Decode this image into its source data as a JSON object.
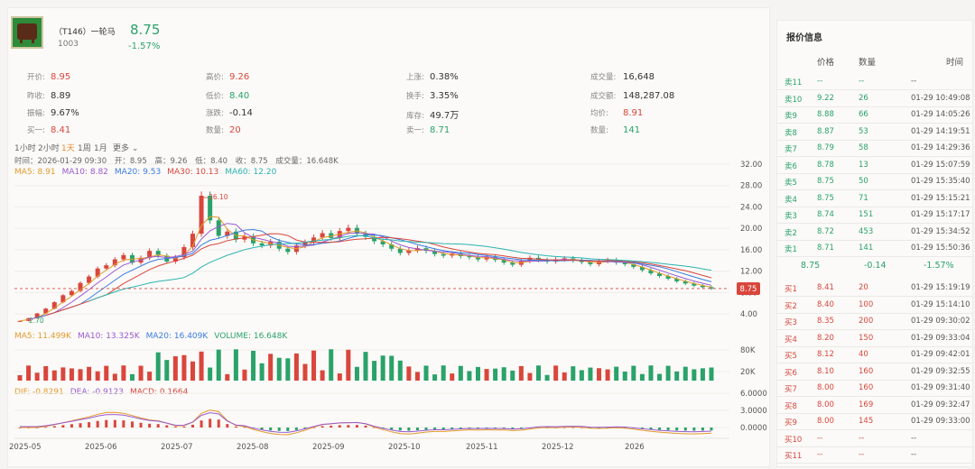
{
  "stock": {
    "name": "（T146）一轮马",
    "code": "1003",
    "price": "8.75",
    "change_pct": "-1.57%"
  },
  "stats": [
    {
      "label": "开价:",
      "value": "8.95",
      "color": "red"
    },
    {
      "label": "高价:",
      "value": "9.26",
      "color": "red"
    },
    {
      "label": "上涨:",
      "value": "0.38%",
      "color": ""
    },
    {
      "label": "成交量:",
      "value": "16,648",
      "color": ""
    },
    {
      "label": "昨收:",
      "value": "8.89",
      "color": ""
    },
    {
      "label": "低价:",
      "value": "8.40",
      "color": "green"
    },
    {
      "label": "换手:",
      "value": "3.35%",
      "color": ""
    },
    {
      "label": "成交额:",
      "value": "148,287.08",
      "color": ""
    },
    {
      "label": "振幅:",
      "value": "9.67%",
      "color": ""
    },
    {
      "label": "涨跌:",
      "value": "-0.14",
      "color": ""
    },
    {
      "label": "库存:",
      "value": "49.7万",
      "color": ""
    },
    {
      "label": "均价:",
      "value": "8.91",
      "color": "red"
    },
    {
      "label": "买一:",
      "value": "8.41",
      "color": "red"
    },
    {
      "label": "数量:",
      "value": "20",
      "color": "red"
    },
    {
      "label": "卖一:",
      "value": "8.71",
      "color": "green"
    },
    {
      "label": "数量:",
      "value": "141",
      "color": "green"
    }
  ],
  "timeframes": [
    "1小时",
    "2小时",
    "1天",
    "1周",
    "1月"
  ],
  "timeframe_active": "1天",
  "timeframe_more": "更多 ⌄",
  "kline_info": {
    "time": "时间：2026-01-29 09:30",
    "open": "开：8.95",
    "high": "高：9.26",
    "low": "低：8.40",
    "close": "收：8.75",
    "volume": "成交量：16.648K"
  },
  "ma_legend": [
    {
      "text": "MA5: 8.91",
      "color": "#e59a2c"
    },
    {
      "text": "MA10: 8.82",
      "color": "#9b59d0"
    },
    {
      "text": "MA20: 9.53",
      "color": "#3b7be0"
    },
    {
      "text": "MA30: 10.13",
      "color": "#d9463c"
    },
    {
      "text": "MA60: 12.20",
      "color": "#2bb3b0"
    }
  ],
  "vol_legend": [
    {
      "text": "MA5: 11.499K",
      "color": "#e59a2c"
    },
    {
      "text": "MA10: 13.325K",
      "color": "#9b59d0"
    },
    {
      "text": "MA20: 16.409K",
      "color": "#3b7be0"
    },
    {
      "text": "VOLUME: 16.648K",
      "color": "#2aa26a"
    }
  ],
  "macd_legend": [
    {
      "text": "DIF: -0.8291",
      "color": "#e59a2c"
    },
    {
      "text": "DEA: -0.9123",
      "color": "#9b59d0"
    },
    {
      "text": "MACD: 0.1664",
      "color": "#d9463c"
    }
  ],
  "price_axis": [
    "32.00",
    "28.00",
    "24.00",
    "20.00",
    "16.00",
    "12.00",
    "8.00",
    "4.00"
  ],
  "vol_axis": [
    "80K",
    "20K"
  ],
  "macd_axis": [
    "6.0000",
    "3.0000",
    "0.0000"
  ],
  "x_axis": [
    "2025-05",
    "2025-06",
    "2025-07",
    "2025-08",
    "2025-09",
    "2025-10",
    "2025-11",
    "2025-12",
    "2026"
  ],
  "annotations": {
    "high": "26.10",
    "low": "2.70",
    "current": "8.75"
  },
  "chart_data": {
    "type": "candlestick",
    "price_series": [
      2.7,
      3.2,
      4.1,
      5.0,
      6.2,
      7.5,
      8.3,
      9.8,
      11.0,
      12.5,
      13.1,
      14.2,
      15.0,
      13.6,
      14.5,
      15.8,
      14.9,
      13.8,
      14.6,
      16.5,
      19.0,
      26.1,
      21.5,
      18.6,
      19.4,
      17.9,
      18.5,
      17.2,
      16.8,
      17.5,
      16.2,
      15.6,
      16.8,
      17.4,
      18.3,
      19.1,
      18.2,
      19.5,
      20.1,
      19.0,
      18.4,
      17.6,
      17.0,
      16.2,
      15.4,
      15.9,
      16.3,
      15.8,
      15.2,
      14.9,
      15.3,
      14.8,
      14.6,
      14.2,
      14.7,
      14.1,
      13.6,
      13.2,
      13.9,
      14.5,
      14.1,
      13.8,
      14.2,
      14.4,
      14.0,
      13.7,
      13.3,
      13.9,
      14.1,
      13.6,
      13.3,
      12.8,
      12.2,
      11.6,
      11.1,
      10.6,
      10.1,
      9.7,
      9.3,
      9.0,
      8.75
    ],
    "ma_latest": {
      "MA5": 8.91,
      "MA10": 8.82,
      "MA20": 9.53,
      "MA30": 10.13,
      "MA60": 12.2
    },
    "volume_latest": "16.648K",
    "macd_latest": {
      "DIF": -0.8291,
      "DEA": -0.9123,
      "MACD": 0.1664
    }
  },
  "orderbook": {
    "title": "报价信息",
    "headers": [
      "价格",
      "数量",
      "时间"
    ],
    "asks": [
      {
        "label": "卖11",
        "price": "--",
        "qty": "--",
        "time": "--"
      },
      {
        "label": "卖10",
        "price": "9.22",
        "qty": "26",
        "time": "01-29 10:49:08"
      },
      {
        "label": "卖9",
        "price": "8.88",
        "qty": "66",
        "time": "01-29 14:05:26"
      },
      {
        "label": "卖8",
        "price": "8.87",
        "qty": "53",
        "time": "01-29 14:19:51"
      },
      {
        "label": "卖7",
        "price": "8.79",
        "qty": "58",
        "time": "01-29 14:29:36"
      },
      {
        "label": "卖6",
        "price": "8.78",
        "qty": "13",
        "time": "01-29 15:07:59"
      },
      {
        "label": "卖5",
        "price": "8.75",
        "qty": "50",
        "time": "01-29 15:35:40"
      },
      {
        "label": "卖4",
        "price": "8.75",
        "qty": "71",
        "time": "01-29 15:15:21"
      },
      {
        "label": "卖3",
        "price": "8.74",
        "qty": "151",
        "time": "01-29 15:17:17"
      },
      {
        "label": "卖2",
        "price": "8.72",
        "qty": "453",
        "time": "01-29 15:34:52"
      },
      {
        "label": "卖1",
        "price": "8.71",
        "qty": "141",
        "time": "01-29 15:50:36"
      }
    ],
    "mid": {
      "price": "8.75",
      "change": "-0.14",
      "pct": "-1.57%"
    },
    "bids": [
      {
        "label": "买1",
        "price": "8.41",
        "qty": "20",
        "time": "01-29 15:19:19"
      },
      {
        "label": "买2",
        "price": "8.40",
        "qty": "100",
        "time": "01-29 15:14:10"
      },
      {
        "label": "买3",
        "price": "8.35",
        "qty": "200",
        "time": "01-29 09:30:02"
      },
      {
        "label": "买4",
        "price": "8.20",
        "qty": "150",
        "time": "01-29 09:33:04"
      },
      {
        "label": "买5",
        "price": "8.12",
        "qty": "40",
        "time": "01-29 09:42:01"
      },
      {
        "label": "买6",
        "price": "8.10",
        "qty": "160",
        "time": "01-29 09:32:55"
      },
      {
        "label": "买7",
        "price": "8.00",
        "qty": "160",
        "time": "01-29 09:31:40"
      },
      {
        "label": "买8",
        "price": "8.00",
        "qty": "169",
        "time": "01-29 09:32:47"
      },
      {
        "label": "买9",
        "price": "8.00",
        "qty": "145",
        "time": "01-29 09:33:00"
      },
      {
        "label": "买10",
        "price": "--",
        "qty": "--",
        "time": "--"
      },
      {
        "label": "买11",
        "price": "--",
        "qty": "--",
        "time": "--"
      }
    ]
  }
}
